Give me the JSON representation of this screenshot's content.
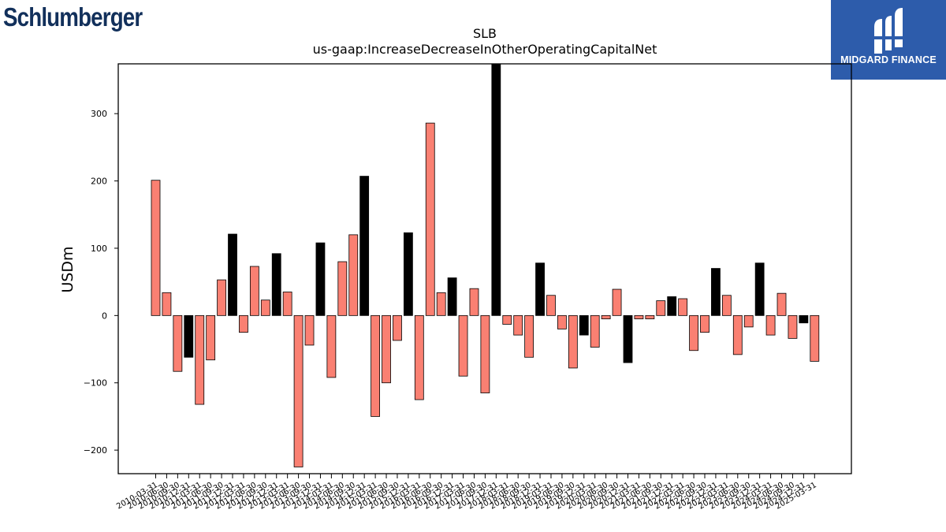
{
  "logos": {
    "left_brand": "Schlumberger",
    "right_brand": "MIDGARD FINANCE",
    "right_bg": "#2d5cab"
  },
  "chart_data": {
    "type": "bar",
    "title": "SLB",
    "subtitle": "us-gaap:IncreaseDecreaseInOtherOperatingCapitalNet",
    "xlabel": "",
    "ylabel": "USDm",
    "ylim": [
      -235,
      374
    ],
    "yticks": [
      -200,
      -100,
      0,
      100,
      200,
      300
    ],
    "grid": false,
    "colors": {
      "highlight": "#000000",
      "default": "#fa8072",
      "edge": "#000000"
    },
    "categories": [
      "2010-03-31",
      "2010-06-30",
      "2010-09-30",
      "2010-12-31",
      "2011-03-31",
      "2011-06-30",
      "2011-09-30",
      "2011-12-31",
      "2012-03-31",
      "2012-06-30",
      "2012-09-30",
      "2012-12-31",
      "2013-03-31",
      "2013-06-30",
      "2013-09-30",
      "2013-12-31",
      "2014-03-31",
      "2014-06-30",
      "2014-09-30",
      "2014-12-31",
      "2015-03-31",
      "2015-06-30",
      "2015-09-30",
      "2015-12-31",
      "2016-03-31",
      "2016-06-30",
      "2016-09-30",
      "2016-12-31",
      "2017-03-31",
      "2017-06-30",
      "2017-09-30",
      "2017-12-31",
      "2018-03-31",
      "2018-06-30",
      "2018-09-30",
      "2018-12-31",
      "2019-03-31",
      "2019-06-30",
      "2019-09-30",
      "2019-12-31",
      "2020-03-31",
      "2020-06-30",
      "2020-09-30",
      "2020-12-31",
      "2021-03-31",
      "2021-06-30",
      "2021-09-30",
      "2021-12-31",
      "2022-03-31",
      "2022-06-30",
      "2022-09-30",
      "2022-12-31",
      "2023-03-31",
      "2023-06-30",
      "2023-09-30",
      "2023-12-31",
      "2024-03-31",
      "2024-06-30",
      "2024-09-30",
      "2024-12-31",
      "2025-03-31"
    ],
    "values": [
      201,
      34,
      -83,
      -62,
      -132,
      -66,
      53,
      121,
      -25,
      73,
      23,
      92,
      35,
      -225,
      -44,
      108,
      -92,
      80,
      120,
      207,
      -150,
      -100,
      -37,
      123,
      -125,
      286,
      34,
      56,
      -90,
      40,
      -115,
      374,
      -13,
      -29,
      -62,
      78,
      30,
      -20,
      -78,
      -29,
      -47,
      -5,
      39,
      -70,
      -5,
      -5,
      22,
      28,
      25,
      -52,
      -25,
      70,
      30,
      -58,
      -17,
      78,
      -29,
      33,
      -34,
      -11,
      -68
    ],
    "highlight": [
      false,
      false,
      false,
      true,
      false,
      false,
      false,
      true,
      false,
      false,
      false,
      true,
      false,
      false,
      false,
      true,
      false,
      false,
      false,
      true,
      false,
      false,
      false,
      true,
      false,
      false,
      false,
      true,
      false,
      false,
      false,
      true,
      false,
      false,
      false,
      true,
      false,
      false,
      false,
      true,
      false,
      false,
      false,
      true,
      false,
      false,
      false,
      true,
      false,
      false,
      false,
      true,
      false,
      false,
      false,
      true,
      false,
      false,
      false,
      true,
      false
    ]
  }
}
